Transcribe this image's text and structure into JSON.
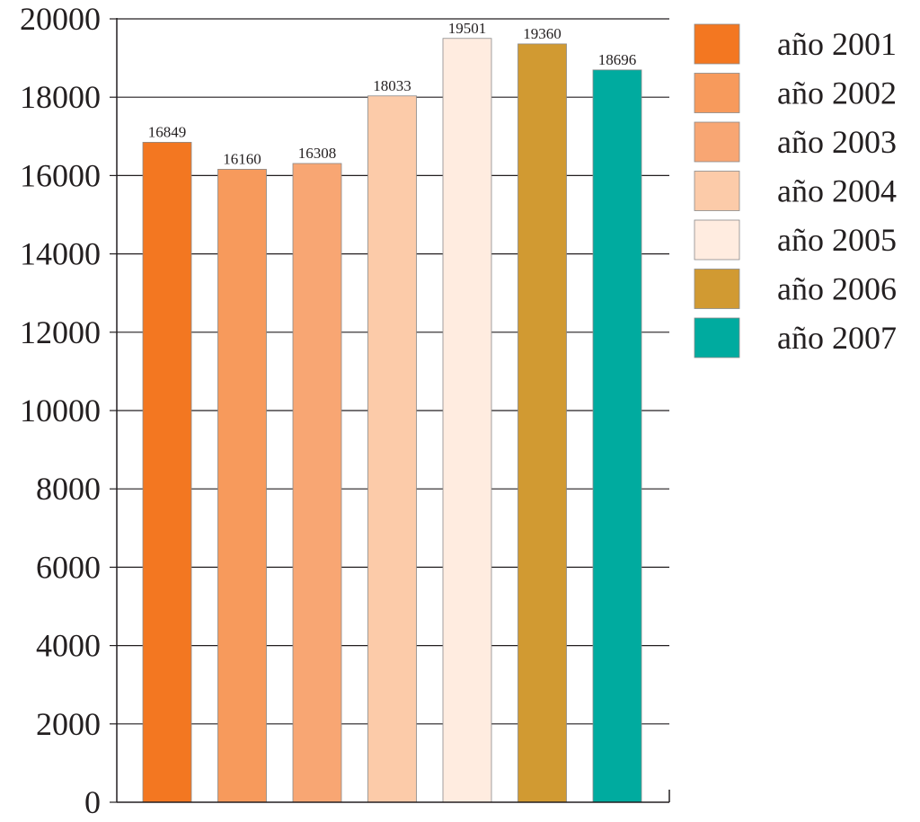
{
  "chart_data": {
    "type": "bar",
    "title": "",
    "xlabel": "",
    "ylabel": "",
    "ylim": [
      0,
      20000
    ],
    "yticks": [
      0,
      2000,
      4000,
      6000,
      8000,
      10000,
      12000,
      14000,
      16000,
      18000,
      20000
    ],
    "grid": true,
    "legend_position": "right",
    "series": [
      {
        "name": "año 2001",
        "value": 16849,
        "label": "16849",
        "color": "#f37721"
      },
      {
        "name": "año 2002",
        "value": 16160,
        "label": "16160",
        "color": "#f79a5c"
      },
      {
        "name": "año 2003",
        "value": 16308,
        "label": "16308",
        "color": "#f8a673"
      },
      {
        "name": "año 2004",
        "value": 18033,
        "label": "18033",
        "color": "#fccba9"
      },
      {
        "name": "año 2005",
        "value": 19501,
        "label": "19501",
        "color": "#ffece0"
      },
      {
        "name": "año 2006",
        "value": 19360,
        "label": "19360",
        "color": "#d19a32"
      },
      {
        "name": "año 2007",
        "value": 18696,
        "label": "18696",
        "color": "#00ab9f"
      }
    ]
  }
}
